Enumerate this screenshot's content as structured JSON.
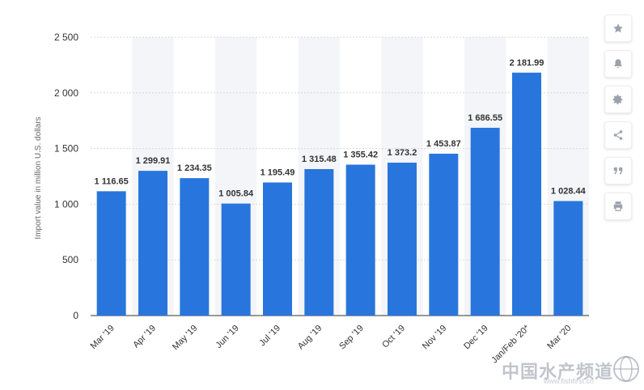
{
  "chart_data": {
    "type": "bar",
    "ylabel": "Import value in million U.S. dollars",
    "ylim": [
      0,
      2500
    ],
    "yticks": [
      0,
      500,
      1000,
      1500,
      2000,
      2500
    ],
    "ytick_labels": [
      "0",
      "500",
      "1 000",
      "1 500",
      "2 000",
      "2 500"
    ],
    "categories": [
      "Mar '19",
      "Apr '19",
      "May '19",
      "Jun '19",
      "Jul '19",
      "Aug '19",
      "Sep '19",
      "Oct '19",
      "Nov '19",
      "Dec '19",
      "Jan/Feb '20*",
      "Mar '20"
    ],
    "values": [
      1116.65,
      1299.91,
      1234.35,
      1005.84,
      1195.49,
      1315.48,
      1355.42,
      1373.2,
      1453.87,
      1686.55,
      2181.99,
      1028.44
    ],
    "value_labels": [
      "1 116.65",
      "1 299.91",
      "1 234.35",
      "1 005.84",
      "1 195.49",
      "1 315.48",
      "1 355.42",
      "1 373.2",
      "1 453.87",
      "1 686.55",
      "2 181.99",
      "1 028.44"
    ],
    "grid": true,
    "colors": {
      "bar": "#2876dd",
      "band": "#f4f5f8",
      "grid": "#d8d8d8"
    }
  },
  "toolbar": {
    "buttons": [
      {
        "name": "star",
        "icon": "star-icon"
      },
      {
        "name": "notification",
        "icon": "bell-icon"
      },
      {
        "name": "settings",
        "icon": "gear-icon"
      },
      {
        "name": "share",
        "icon": "share-icon"
      },
      {
        "name": "cite",
        "icon": "quote-icon"
      },
      {
        "name": "print",
        "icon": "print-icon"
      }
    ]
  },
  "watermark": {
    "text": "中国水产频道",
    "url": "www.fishfirst.cn"
  }
}
